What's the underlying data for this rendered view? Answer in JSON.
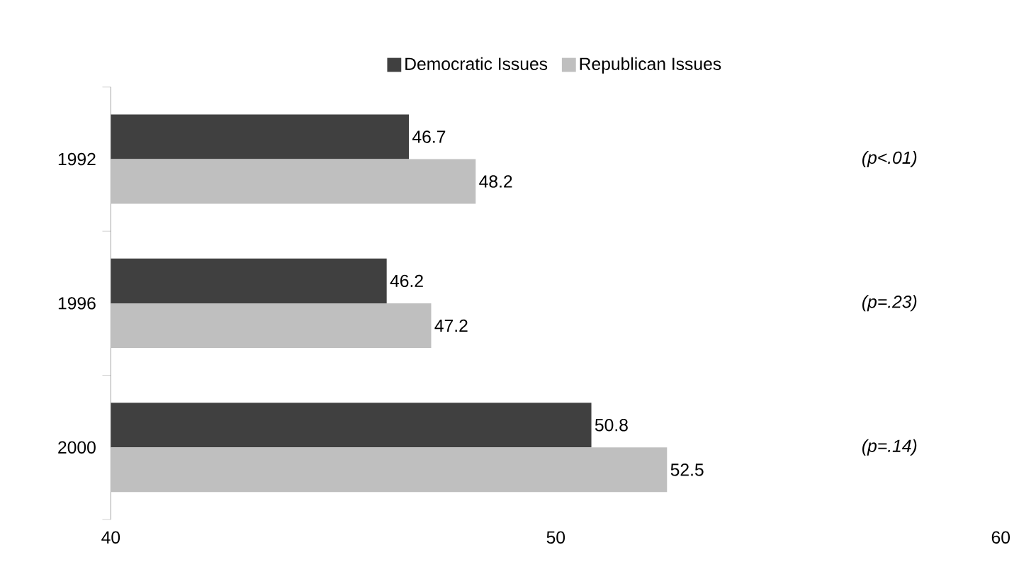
{
  "chart_data": {
    "type": "bar",
    "orientation": "horizontal",
    "categories": [
      "1992",
      "1996",
      "2000"
    ],
    "series": [
      {
        "name": "Democratic Issues",
        "color": "#404040",
        "values": [
          46.7,
          46.2,
          50.8
        ]
      },
      {
        "name": "Republican Issues",
        "color": "#bfbfbf",
        "values": [
          48.2,
          47.2,
          52.5
        ]
      }
    ],
    "xlim": [
      40,
      60
    ],
    "xticks": [
      40,
      50,
      60
    ],
    "data_labels": true,
    "legend": "top",
    "grid": false,
    "annotations": [
      "(p<.01)",
      "(p=.23)",
      "(p=.14)"
    ]
  }
}
